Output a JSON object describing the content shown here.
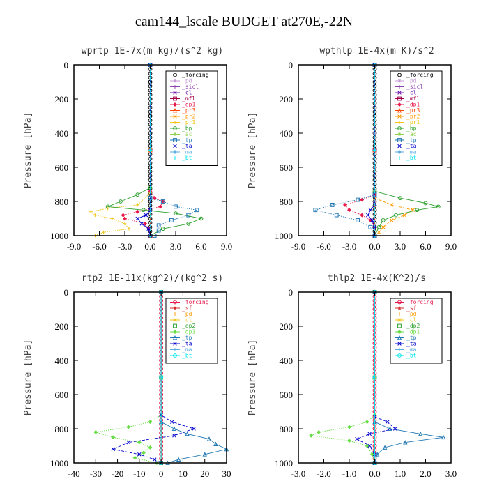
{
  "title": "cam144_lscale  BUDGET at270E,-22N",
  "chart_data": [
    {
      "type": "line",
      "title": "wprtp  1E-7x(m kg)/(s^2 kg)",
      "ylabel": "Pressure [hPa]",
      "xlim": [
        -9,
        9
      ],
      "ylim": [
        1000,
        0
      ],
      "xticks": [
        "-9.0",
        "-6.0",
        "-3.0",
        "0.0",
        "3.0",
        "6.0",
        "9.0"
      ],
      "yticks": [
        "0",
        "200",
        "400",
        "600",
        "800",
        "1000"
      ],
      "series": [
        {
          "name": "_forcing",
          "color": "#000000",
          "y": [
            0,
            100,
            200,
            300,
            400,
            500,
            600,
            700,
            800,
            900,
            1000
          ],
          "x": [
            0,
            0,
            0,
            0,
            0,
            0,
            0,
            0,
            0,
            0,
            0
          ]
        },
        {
          "name": "_pd",
          "color": "#c39bd3",
          "y": [
            0,
            500,
            1000
          ],
          "x": [
            0,
            0,
            0
          ]
        },
        {
          "name": "_sicl",
          "color": "#8e44ad",
          "y": [
            0,
            500,
            1000
          ],
          "x": [
            0,
            0,
            0
          ]
        },
        {
          "name": "_cl",
          "color": "#6a0dad",
          "y": [
            0,
            500,
            1000
          ],
          "x": [
            0,
            0,
            0
          ]
        },
        {
          "name": "_mfl",
          "color": "#a0004a",
          "y": [
            0,
            500,
            1000
          ],
          "x": [
            0,
            0,
            0
          ]
        },
        {
          "name": "_dp1",
          "color": "#e6194b",
          "y": [
            0,
            740,
            780,
            800,
            830,
            860,
            880,
            900,
            930,
            960,
            1000
          ],
          "x": [
            0,
            0,
            0.5,
            1.5,
            1.2,
            -1.5,
            -3.2,
            -3.0,
            -0.6,
            -0.2,
            0
          ]
        },
        {
          "name": "_pr3",
          "color": "#ff4500",
          "y": [
            0,
            500,
            1000
          ],
          "x": [
            0,
            0,
            0
          ]
        },
        {
          "name": "_pr2",
          "color": "#ff9900",
          "y": [
            0,
            500,
            1000
          ],
          "x": [
            0,
            0,
            0
          ]
        },
        {
          "name": "_pr1",
          "color": "#f1c40f",
          "y": [
            0,
            750,
            820,
            840,
            860,
            880,
            900,
            930,
            960,
            980,
            1000
          ],
          "x": [
            0,
            0,
            -1.5,
            -5.0,
            -7.0,
            -6.5,
            -4.5,
            -3.0,
            -2.5,
            -5.5,
            -6.5
          ]
        },
        {
          "name": "_bp",
          "color": "#2ca02c",
          "y": [
            0,
            720,
            760,
            800,
            830,
            850,
            870,
            900,
            930,
            960,
            1000
          ],
          "x": [
            0,
            0,
            -1.5,
            -3.5,
            -5.0,
            -0.8,
            3.0,
            6.0,
            4.5,
            1.5,
            0
          ]
        },
        {
          "name": "_ac",
          "color": "#8fd14f",
          "y": [
            0,
            500,
            1000
          ],
          "x": [
            0,
            0,
            0
          ]
        },
        {
          "name": "_tp",
          "color": "#1f77b4",
          "y": [
            0,
            780,
            800,
            830,
            850,
            880,
            910,
            940,
            970,
            1000
          ],
          "x": [
            0,
            0,
            1.5,
            3.0,
            5.5,
            4.5,
            2.5,
            1.0,
            1.0,
            0.5
          ]
        },
        {
          "name": "_ta",
          "color": "#0000cc",
          "y": [
            0,
            850,
            880,
            900,
            930,
            960,
            1000
          ],
          "x": [
            0,
            0,
            -0.5,
            -1.5,
            -1.0,
            -0.2,
            0
          ]
        },
        {
          "name": "_ma",
          "color": "#5dade2",
          "y": [
            0,
            500,
            1000
          ],
          "x": [
            0,
            0,
            0
          ]
        },
        {
          "name": "_bt",
          "color": "#00e5ee",
          "y": [
            0,
            500,
            1000
          ],
          "x": [
            0,
            0,
            0
          ]
        }
      ]
    },
    {
      "type": "line",
      "title": "wpthlp  1E-4x(m K)/s^2",
      "ylabel": "Pressure [hPa]",
      "xlim": [
        -9,
        9
      ],
      "ylim": [
        1000,
        0
      ],
      "xticks": [
        "-9.0",
        "-6.0",
        "-3.0",
        "0.0",
        "3.0",
        "6.0",
        "9.0"
      ],
      "yticks": [
        "0",
        "200",
        "400",
        "600",
        "800",
        "1000"
      ],
      "series": [
        {
          "name": "_forcing",
          "color": "#000000",
          "y": [
            0,
            500,
            1000
          ],
          "x": [
            0,
            0,
            0
          ]
        },
        {
          "name": "_pd",
          "color": "#c39bd3",
          "y": [
            0,
            200,
            400,
            600,
            800,
            1000
          ],
          "x": [
            0,
            0,
            0,
            0,
            0,
            0
          ]
        },
        {
          "name": "_sicl",
          "color": "#8e44ad",
          "y": [
            0,
            500,
            1000
          ],
          "x": [
            0,
            0,
            0
          ]
        },
        {
          "name": "_cl",
          "color": "#6a0dad",
          "y": [
            0,
            500,
            1000
          ],
          "x": [
            0,
            0,
            0
          ]
        },
        {
          "name": "_mfl",
          "color": "#a0004a",
          "y": [
            0,
            500,
            1000
          ],
          "x": [
            0,
            0,
            0
          ]
        },
        {
          "name": "_dp1",
          "color": "#e6194b",
          "y": [
            0,
            760,
            790,
            820,
            850,
            880,
            910,
            950,
            1000
          ],
          "x": [
            0,
            0,
            -1.5,
            -3.5,
            -3.0,
            -1.5,
            -0.5,
            0,
            0
          ]
        },
        {
          "name": "_pr3",
          "color": "#ff4500",
          "y": [
            0,
            500,
            1000
          ],
          "x": [
            0,
            0,
            0
          ]
        },
        {
          "name": "_pr2",
          "color": "#ff9900",
          "y": [
            0,
            780,
            820,
            850,
            880,
            910,
            950,
            980,
            1000
          ],
          "x": [
            0,
            0,
            2.0,
            4.5,
            3.5,
            2.0,
            1.0,
            0.5,
            0
          ]
        },
        {
          "name": "_pr1",
          "color": "#f1c40f",
          "y": [
            0,
            500,
            1000
          ],
          "x": [
            0,
            0,
            0
          ]
        },
        {
          "name": "_bp",
          "color": "#2ca02c",
          "y": [
            0,
            740,
            780,
            810,
            830,
            850,
            880,
            910,
            950,
            1000
          ],
          "x": [
            0,
            0,
            3.0,
            6.0,
            7.5,
            5.0,
            2.5,
            1.0,
            0.5,
            0
          ]
        },
        {
          "name": "_ac",
          "color": "#8fd14f",
          "y": [
            0,
            500,
            1000
          ],
          "x": [
            0,
            0,
            0
          ]
        },
        {
          "name": "_tp",
          "color": "#1f77b4",
          "y": [
            0,
            760,
            790,
            820,
            850,
            880,
            910,
            950,
            1000
          ],
          "x": [
            0,
            0,
            -2.0,
            -5.0,
            -7.0,
            -4.5,
            -2.0,
            -0.5,
            0
          ]
        },
        {
          "name": "_ta",
          "color": "#0000cc",
          "y": [
            0,
            820,
            850,
            880,
            910,
            950,
            1000
          ],
          "x": [
            0,
            0,
            -0.5,
            -0.8,
            -0.3,
            0,
            0
          ]
        },
        {
          "name": "_ma",
          "color": "#5dade2",
          "y": [
            0,
            500,
            1000
          ],
          "x": [
            0,
            0,
            0
          ]
        },
        {
          "name": "_bt",
          "color": "#00e5ee",
          "y": [
            0,
            500,
            1000
          ],
          "x": [
            0,
            0,
            0
          ]
        }
      ]
    },
    {
      "type": "line",
      "title": "rtp2  1E-11x(kg^2)/(kg^2 s)",
      "ylabel": "Pressure [hPa]",
      "xlim": [
        -40,
        30
      ],
      "ylim": [
        1000,
        0
      ],
      "xticks": [
        "-40",
        "-30",
        "-20",
        "-10",
        "0",
        "10",
        "20",
        "30"
      ],
      "yticks": [
        "0",
        "200",
        "400",
        "600",
        "800",
        "1000"
      ],
      "series": [
        {
          "name": "_forcing",
          "color": "#e6194b",
          "y": [
            0,
            100,
            200,
            300,
            400,
            500,
            600,
            700,
            800,
            900,
            1000
          ],
          "x": [
            0,
            0,
            0,
            0,
            0,
            0,
            0,
            0,
            0,
            0,
            0
          ]
        },
        {
          "name": "_sf",
          "color": "#d62728",
          "y": [
            0,
            500,
            1000
          ],
          "x": [
            0,
            0,
            0
          ]
        },
        {
          "name": "_pd",
          "color": "#ff9900",
          "y": [
            0,
            500,
            1000
          ],
          "x": [
            0,
            0,
            0
          ]
        },
        {
          "name": "_cl",
          "color": "#f1c40f",
          "y": [
            0,
            500,
            1000
          ],
          "x": [
            0,
            0,
            0
          ]
        },
        {
          "name": "_dp2",
          "color": "#2ca02c",
          "y": [
            0,
            500,
            1000
          ],
          "x": [
            0,
            0,
            0
          ]
        },
        {
          "name": "_dp1",
          "color": "#66dd44",
          "y": [
            0,
            720,
            760,
            790,
            820,
            850,
            880,
            910,
            940,
            970,
            1000
          ],
          "x": [
            0,
            0,
            -5,
            -15,
            -30,
            -22,
            -10,
            -5,
            -8,
            -12,
            -2
          ]
        },
        {
          "name": "_tp",
          "color": "#1f77b4",
          "y": [
            0,
            760,
            800,
            830,
            860,
            890,
            920,
            950,
            980,
            1000
          ],
          "x": [
            0,
            0,
            6,
            12,
            22,
            25,
            30,
            20,
            8,
            3
          ]
        },
        {
          "name": "_ta",
          "color": "#0000cc",
          "y": [
            0,
            720,
            760,
            800,
            840,
            880,
            920,
            950,
            980,
            1000
          ],
          "x": [
            0,
            0,
            5,
            15,
            6,
            -15,
            -22,
            -10,
            -3,
            0
          ]
        },
        {
          "name": "_ma",
          "color": "#5dade2",
          "y": [
            0,
            500,
            1000
          ],
          "x": [
            0,
            0,
            0
          ]
        },
        {
          "name": "_bt",
          "color": "#00e5ee",
          "y": [
            0,
            500,
            1000
          ],
          "x": [
            0,
            0,
            0
          ]
        }
      ]
    },
    {
      "type": "line",
      "title": "thlp2  1E-4x(K^2)/s",
      "ylabel": "Pressure [hPa]",
      "xlim": [
        -3,
        3
      ],
      "ylim": [
        1000,
        0
      ],
      "xticks": [
        "-3.0",
        "-2.0",
        "-1.0",
        "0.0",
        "1.0",
        "2.0",
        "3.0"
      ],
      "yticks": [
        "0",
        "200",
        "400",
        "600",
        "800",
        "1000"
      ],
      "series": [
        {
          "name": "_forcing",
          "color": "#e6194b",
          "y": [
            0,
            100,
            200,
            300,
            400,
            500,
            600,
            700,
            800,
            900,
            1000
          ],
          "x": [
            0,
            0,
            0,
            0,
            0,
            0,
            0,
            0,
            0,
            0,
            0
          ]
        },
        {
          "name": "_sf",
          "color": "#d62728",
          "y": [
            0,
            500,
            1000
          ],
          "x": [
            0,
            0,
            0
          ]
        },
        {
          "name": "_pd",
          "color": "#ff9900",
          "y": [
            0,
            500,
            1000
          ],
          "x": [
            0,
            0,
            0
          ]
        },
        {
          "name": "_cl",
          "color": "#f1c40f",
          "y": [
            0,
            500,
            1000
          ],
          "x": [
            0,
            0,
            0
          ]
        },
        {
          "name": "_dp2",
          "color": "#2ca02c",
          "y": [
            0,
            500,
            1000
          ],
          "x": [
            0,
            0,
            0
          ]
        },
        {
          "name": "_dp1",
          "color": "#66dd44",
          "y": [
            0,
            720,
            760,
            790,
            820,
            840,
            870,
            900,
            950,
            1000
          ],
          "x": [
            0,
            0,
            -0.3,
            -1.0,
            -2.2,
            -2.5,
            -1.0,
            -0.3,
            -0.1,
            0
          ]
        },
        {
          "name": "_tp",
          "color": "#1f77b4",
          "y": [
            0,
            760,
            800,
            830,
            850,
            880,
            910,
            950,
            1000
          ],
          "x": [
            0,
            0,
            0.6,
            1.8,
            2.7,
            1.2,
            0.4,
            0.1,
            0
          ]
        },
        {
          "name": "_ta",
          "color": "#0000cc",
          "y": [
            0,
            730,
            760,
            800,
            830,
            860,
            900,
            950,
            1000
          ],
          "x": [
            0,
            0,
            0.5,
            0.8,
            -0.2,
            -0.7,
            -0.2,
            0,
            0
          ]
        },
        {
          "name": "_ma",
          "color": "#5dade2",
          "y": [
            0,
            500,
            1000
          ],
          "x": [
            0,
            0,
            0
          ]
        },
        {
          "name": "_bt",
          "color": "#00e5ee",
          "y": [
            0,
            500,
            1000
          ],
          "x": [
            0,
            0,
            0
          ]
        }
      ]
    }
  ]
}
